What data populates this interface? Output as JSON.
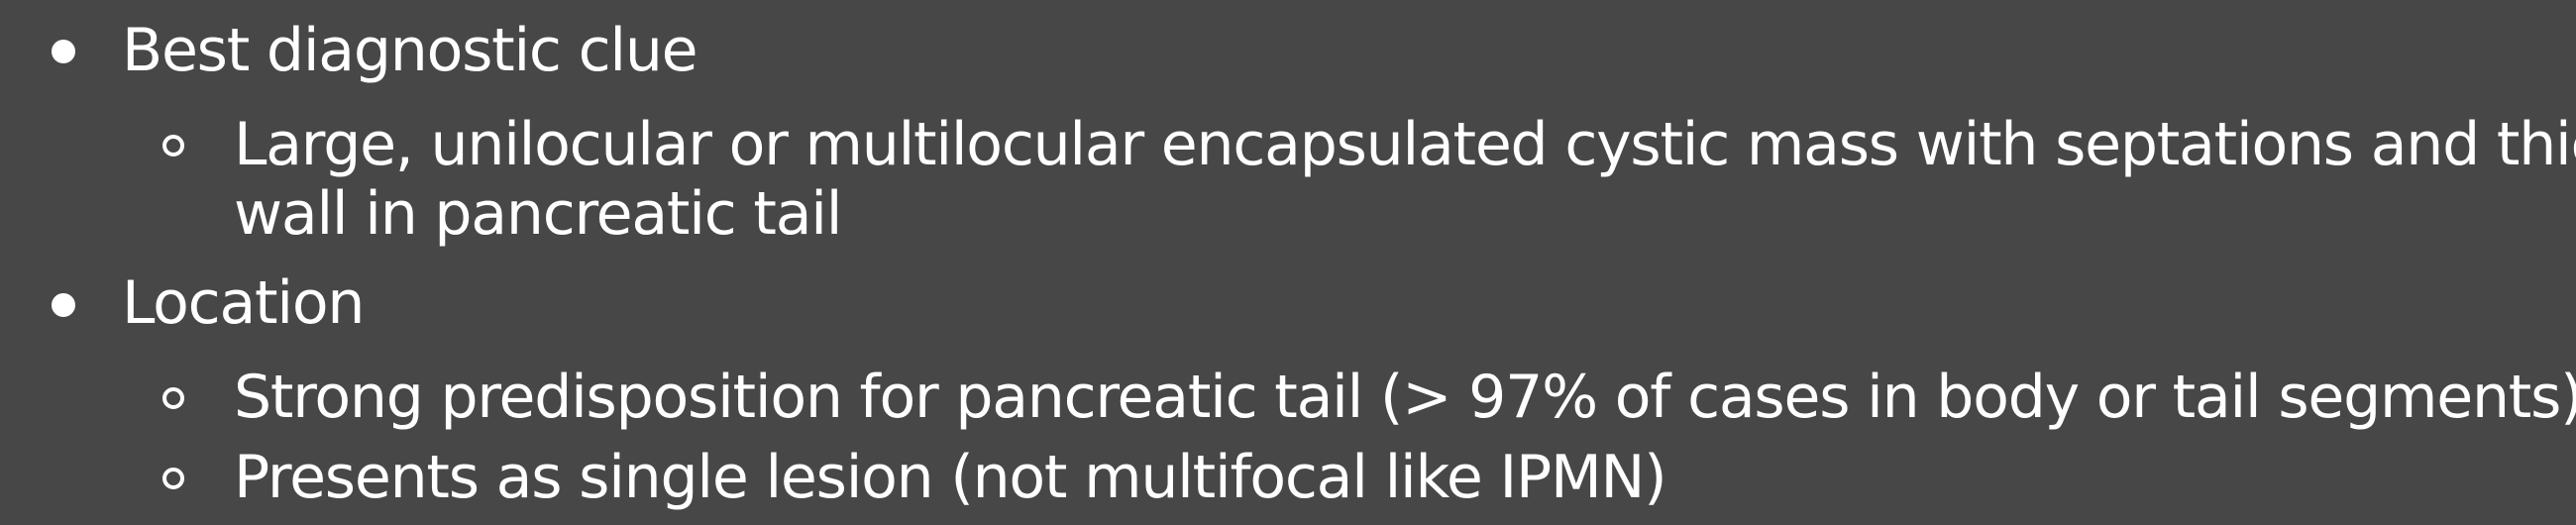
{
  "bullets": [
    {
      "text": "Best diagnostic clue",
      "sub": [
        {
          "line1": "Large, unilocular or multilocular encapsulated cystic mass with septations and thick",
          "line2": "wall in pancreatic tail"
        }
      ]
    },
    {
      "text": "Location",
      "sub": [
        {
          "line1": "Strong predisposition for pancreatic tail (> 97% of cases in body or tail segments)"
        },
        {
          "line1": "Presents as single lesion (not multifocal like IPMN)"
        }
      ]
    }
  ]
}
